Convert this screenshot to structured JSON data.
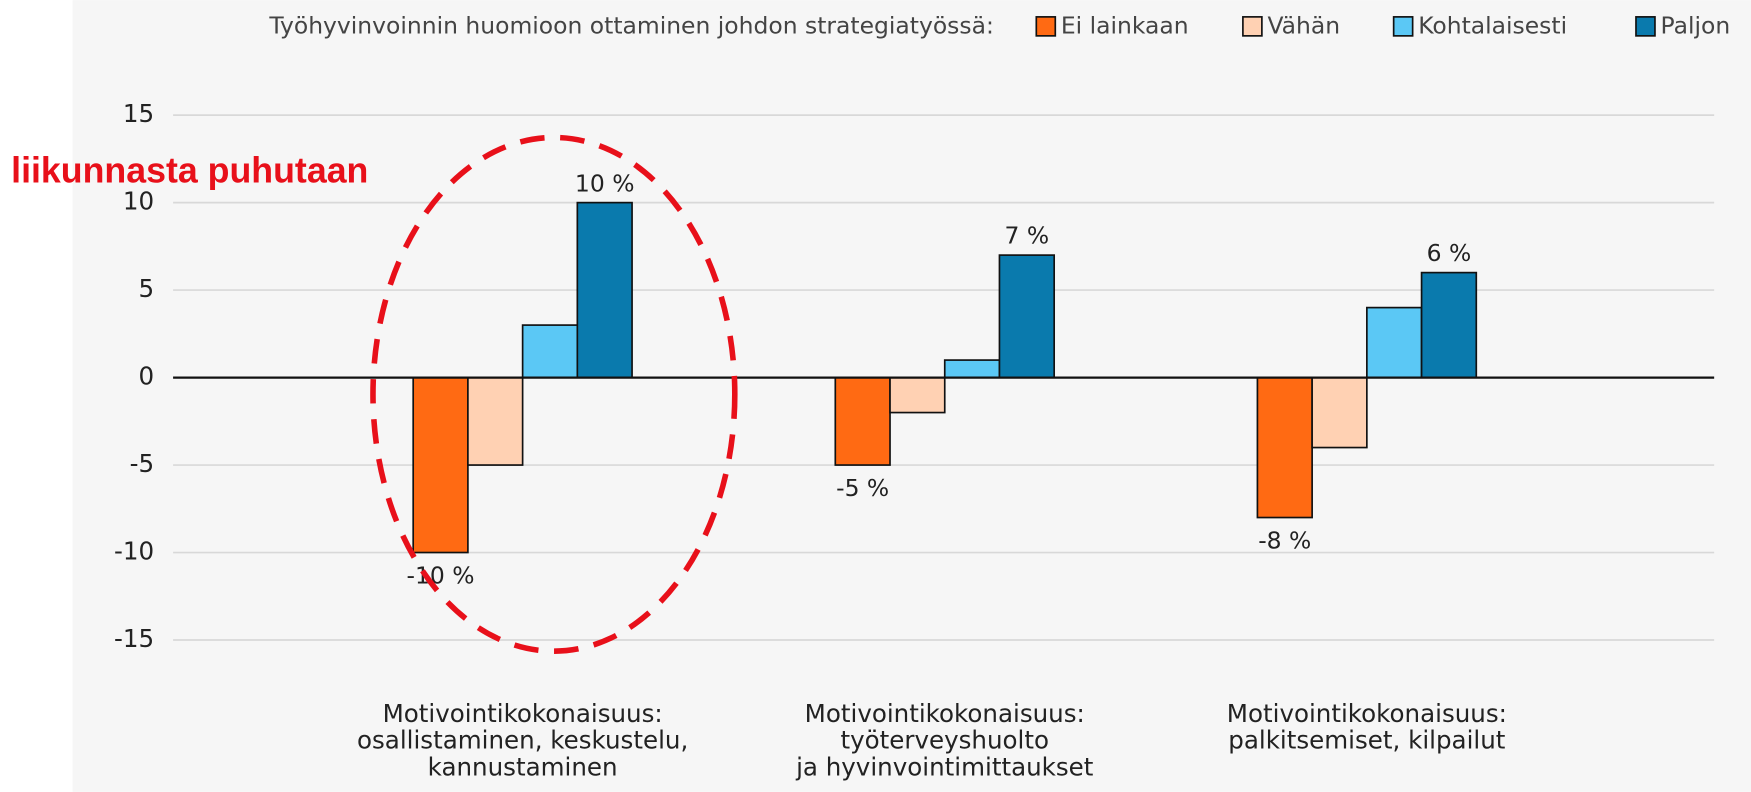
{
  "chart_data": {
    "type": "bar",
    "legend_title": "Työhyvinvoinnin huomioon ottaminen johdon strategiatyössä:",
    "annotation": "liikunnasta puhutaan",
    "categories": [
      [
        "Motivointikokonaisuus:",
        "osallistaminen, keskustelu,",
        "kannustaminen"
      ],
      [
        "Motivointikokonaisuus:",
        "työterveyshuolto",
        "ja hyvinvointimittaukset"
      ],
      [
        "Motivointikokonaisuus:",
        "palkitsemiset, kilpailut"
      ]
    ],
    "series": [
      {
        "name": "Ei lainkaan",
        "color": "#ff6a13",
        "values": [
          -10,
          -5,
          -8
        ],
        "value_labels": [
          "-10 %",
          "-5 %",
          "-8 %"
        ]
      },
      {
        "name": "Vähän",
        "color": "#ffd1b3",
        "values": [
          -5,
          -2,
          -4
        ]
      },
      {
        "name": "Kohtalaisesti",
        "color": "#5bc8f5",
        "values": [
          3,
          1,
          4
        ]
      },
      {
        "name": "Paljon",
        "color": "#0a7aad",
        "values": [
          10,
          7,
          6
        ],
        "value_labels": [
          "10 %",
          "7 %",
          "6 %"
        ]
      }
    ],
    "ylim": [
      -15,
      15
    ],
    "yticks": [
      -15,
      -10,
      -5,
      0,
      5,
      10,
      15
    ],
    "grid": true
  }
}
